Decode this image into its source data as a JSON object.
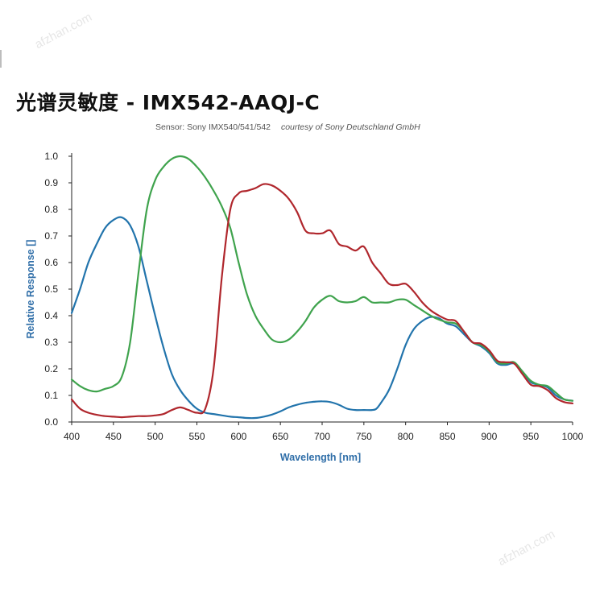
{
  "title": "光谱灵敏度 - IMX542-AAQJ-C",
  "subtitle": {
    "sensor": "Sensor: Sony IMX540/541/542",
    "courtesy": "courtesy of Sony Deutschland GmbH"
  },
  "watermark": "afzhan.com",
  "colors": {
    "axis_label": "#2f6ea8",
    "blue": "#2274ac",
    "green": "#3fa34d",
    "red": "#b0272d"
  },
  "chart_data": {
    "type": "line",
    "title": "光谱灵敏度 - IMX542-AAQJ-C",
    "xlabel": "Wavelength [nm]",
    "ylabel": "Relative Response []",
    "xlim": [
      400,
      1000
    ],
    "ylim": [
      0,
      1
    ],
    "xticks": [
      "400",
      "450",
      "500",
      "550",
      "600",
      "650",
      "700",
      "750",
      "800",
      "850",
      "900",
      "950",
      "1000"
    ],
    "yticks": [
      "0.0",
      "0.1",
      "0.2",
      "0.3",
      "0.4",
      "0.5",
      "0.6",
      "0.7",
      "0.8",
      "0.9",
      "1.0"
    ],
    "grid": false,
    "series": [
      {
        "name": "Blue",
        "color": "#2274ac",
        "points": [
          [
            400,
            0.41
          ],
          [
            410,
            0.5
          ],
          [
            420,
            0.6
          ],
          [
            430,
            0.67
          ],
          [
            440,
            0.73
          ],
          [
            450,
            0.76
          ],
          [
            460,
            0.77
          ],
          [
            470,
            0.74
          ],
          [
            480,
            0.66
          ],
          [
            490,
            0.53
          ],
          [
            500,
            0.4
          ],
          [
            510,
            0.28
          ],
          [
            520,
            0.18
          ],
          [
            530,
            0.12
          ],
          [
            540,
            0.08
          ],
          [
            550,
            0.05
          ],
          [
            560,
            0.035
          ],
          [
            570,
            0.03
          ],
          [
            580,
            0.025
          ],
          [
            590,
            0.02
          ],
          [
            600,
            0.018
          ],
          [
            610,
            0.015
          ],
          [
            620,
            0.015
          ],
          [
            630,
            0.02
          ],
          [
            640,
            0.028
          ],
          [
            650,
            0.04
          ],
          [
            660,
            0.055
          ],
          [
            670,
            0.065
          ],
          [
            680,
            0.072
          ],
          [
            690,
            0.076
          ],
          [
            700,
            0.078
          ],
          [
            710,
            0.075
          ],
          [
            720,
            0.065
          ],
          [
            730,
            0.05
          ],
          [
            740,
            0.045
          ],
          [
            750,
            0.045
          ],
          [
            760,
            0.045
          ],
          [
            765,
            0.05
          ],
          [
            770,
            0.07
          ],
          [
            780,
            0.12
          ],
          [
            790,
            0.2
          ],
          [
            800,
            0.29
          ],
          [
            810,
            0.35
          ],
          [
            820,
            0.38
          ],
          [
            830,
            0.395
          ],
          [
            840,
            0.39
          ],
          [
            850,
            0.37
          ],
          [
            860,
            0.36
          ],
          [
            870,
            0.33
          ],
          [
            880,
            0.3
          ],
          [
            890,
            0.285
          ],
          [
            900,
            0.26
          ],
          [
            910,
            0.22
          ],
          [
            920,
            0.215
          ],
          [
            930,
            0.22
          ],
          [
            940,
            0.19
          ],
          [
            950,
            0.15
          ],
          [
            960,
            0.14
          ],
          [
            970,
            0.13
          ],
          [
            980,
            0.1
          ],
          [
            990,
            0.085
          ],
          [
            1000,
            0.08
          ]
        ]
      },
      {
        "name": "Green",
        "color": "#3fa34d",
        "points": [
          [
            400,
            0.16
          ],
          [
            410,
            0.135
          ],
          [
            420,
            0.12
          ],
          [
            430,
            0.115
          ],
          [
            440,
            0.125
          ],
          [
            450,
            0.135
          ],
          [
            460,
            0.17
          ],
          [
            470,
            0.3
          ],
          [
            480,
            0.56
          ],
          [
            490,
            0.8
          ],
          [
            500,
            0.91
          ],
          [
            510,
            0.96
          ],
          [
            520,
            0.99
          ],
          [
            530,
            1.0
          ],
          [
            540,
            0.99
          ],
          [
            550,
            0.96
          ],
          [
            560,
            0.92
          ],
          [
            570,
            0.87
          ],
          [
            580,
            0.81
          ],
          [
            590,
            0.73
          ],
          [
            600,
            0.6
          ],
          [
            610,
            0.48
          ],
          [
            620,
            0.4
          ],
          [
            630,
            0.35
          ],
          [
            640,
            0.31
          ],
          [
            650,
            0.3
          ],
          [
            660,
            0.31
          ],
          [
            670,
            0.34
          ],
          [
            680,
            0.38
          ],
          [
            690,
            0.43
          ],
          [
            700,
            0.46
          ],
          [
            710,
            0.475
          ],
          [
            720,
            0.455
          ],
          [
            730,
            0.45
          ],
          [
            740,
            0.455
          ],
          [
            750,
            0.47
          ],
          [
            760,
            0.45
          ],
          [
            770,
            0.45
          ],
          [
            780,
            0.45
          ],
          [
            790,
            0.46
          ],
          [
            800,
            0.46
          ],
          [
            810,
            0.44
          ],
          [
            820,
            0.42
          ],
          [
            830,
            0.4
          ],
          [
            840,
            0.385
          ],
          [
            850,
            0.375
          ],
          [
            860,
            0.37
          ],
          [
            870,
            0.34
          ],
          [
            880,
            0.3
          ],
          [
            890,
            0.29
          ],
          [
            900,
            0.265
          ],
          [
            910,
            0.225
          ],
          [
            920,
            0.22
          ],
          [
            930,
            0.225
          ],
          [
            940,
            0.19
          ],
          [
            950,
            0.155
          ],
          [
            960,
            0.14
          ],
          [
            970,
            0.135
          ],
          [
            980,
            0.11
          ],
          [
            990,
            0.085
          ],
          [
            1000,
            0.08
          ]
        ]
      },
      {
        "name": "Red",
        "color": "#b0272d",
        "points": [
          [
            400,
            0.085
          ],
          [
            410,
            0.05
          ],
          [
            420,
            0.035
          ],
          [
            430,
            0.027
          ],
          [
            440,
            0.022
          ],
          [
            450,
            0.02
          ],
          [
            460,
            0.018
          ],
          [
            470,
            0.02
          ],
          [
            480,
            0.022
          ],
          [
            490,
            0.022
          ],
          [
            500,
            0.025
          ],
          [
            510,
            0.03
          ],
          [
            520,
            0.045
          ],
          [
            530,
            0.055
          ],
          [
            540,
            0.045
          ],
          [
            550,
            0.035
          ],
          [
            560,
            0.05
          ],
          [
            570,
            0.2
          ],
          [
            580,
            0.55
          ],
          [
            590,
            0.8
          ],
          [
            600,
            0.86
          ],
          [
            610,
            0.87
          ],
          [
            620,
            0.88
          ],
          [
            630,
            0.895
          ],
          [
            640,
            0.89
          ],
          [
            650,
            0.87
          ],
          [
            660,
            0.84
          ],
          [
            670,
            0.79
          ],
          [
            680,
            0.72
          ],
          [
            690,
            0.71
          ],
          [
            700,
            0.71
          ],
          [
            710,
            0.72
          ],
          [
            720,
            0.67
          ],
          [
            730,
            0.66
          ],
          [
            740,
            0.645
          ],
          [
            750,
            0.66
          ],
          [
            760,
            0.6
          ],
          [
            770,
            0.56
          ],
          [
            780,
            0.52
          ],
          [
            790,
            0.515
          ],
          [
            800,
            0.52
          ],
          [
            810,
            0.49
          ],
          [
            820,
            0.45
          ],
          [
            830,
            0.42
          ],
          [
            840,
            0.4
          ],
          [
            850,
            0.385
          ],
          [
            860,
            0.38
          ],
          [
            870,
            0.34
          ],
          [
            880,
            0.3
          ],
          [
            890,
            0.295
          ],
          [
            900,
            0.27
          ],
          [
            910,
            0.23
          ],
          [
            920,
            0.225
          ],
          [
            930,
            0.22
          ],
          [
            940,
            0.18
          ],
          [
            950,
            0.14
          ],
          [
            960,
            0.135
          ],
          [
            970,
            0.12
          ],
          [
            980,
            0.09
          ],
          [
            990,
            0.075
          ],
          [
            1000,
            0.07
          ]
        ]
      }
    ]
  }
}
